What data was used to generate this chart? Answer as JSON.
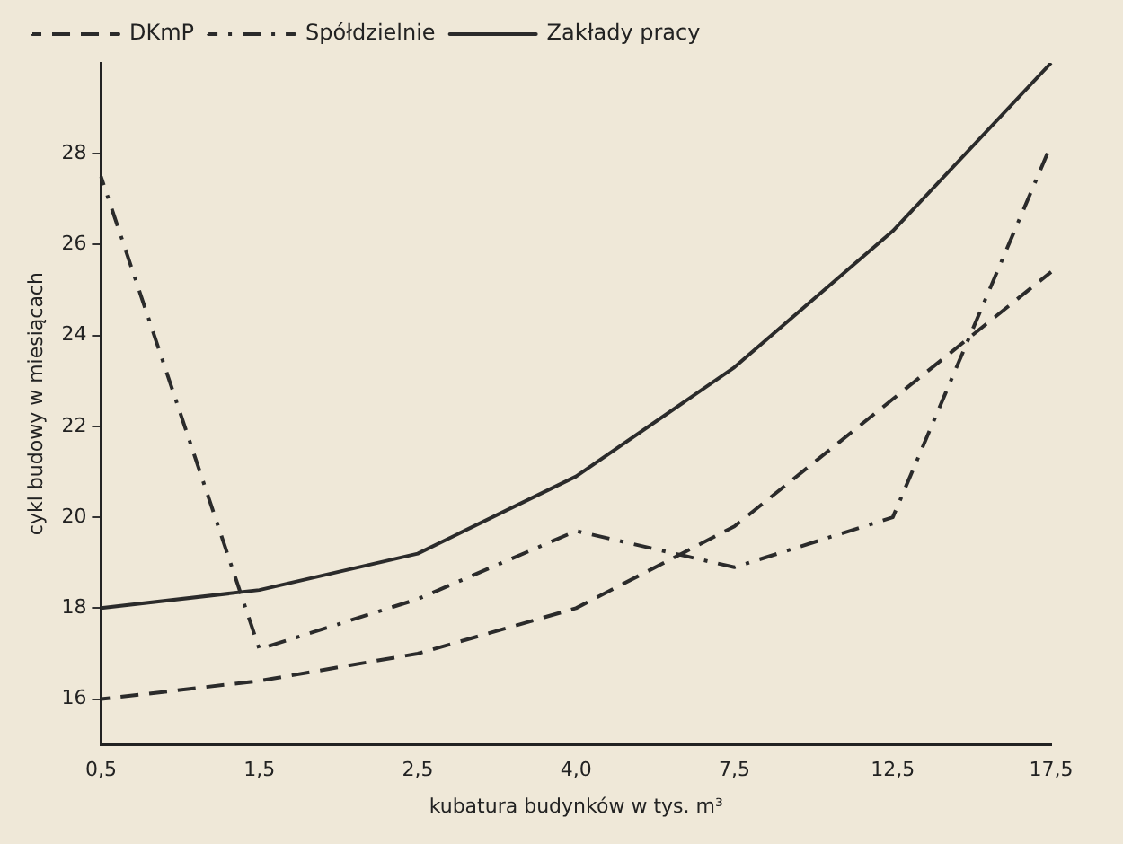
{
  "chart_data": {
    "type": "line",
    "xlabel": "kubatura budynków w tys. m³",
    "ylabel": "cykl budowy w miesiącach",
    "categories": [
      "0,5",
      "1,5",
      "2,5",
      "4,0",
      "7,5",
      "12,5",
      "17,5"
    ],
    "series": [
      {
        "name": "DKmP",
        "color": "#2b2b2b",
        "line_style": "dashed",
        "values": [
          16,
          16.4,
          17,
          18,
          19.8,
          22.6,
          25.4
        ]
      },
      {
        "name": "Spółdzielnie",
        "color": "#2b2b2b",
        "line_style": "dashdot",
        "values": [
          27.5,
          17.1,
          18.2,
          19.7,
          18.9,
          20,
          28.2
        ]
      },
      {
        "name": "Zakłady pracy",
        "color": "#2b2b2b",
        "line_style": "solid",
        "values": [
          18,
          18.4,
          19.2,
          20.9,
          23.3,
          26.3,
          30
        ]
      }
    ],
    "ylim": [
      15,
      30
    ],
    "yticks": [
      16,
      18,
      20,
      22,
      24,
      26,
      28
    ],
    "grid": false,
    "legend": "top left",
    "marker": "none"
  }
}
